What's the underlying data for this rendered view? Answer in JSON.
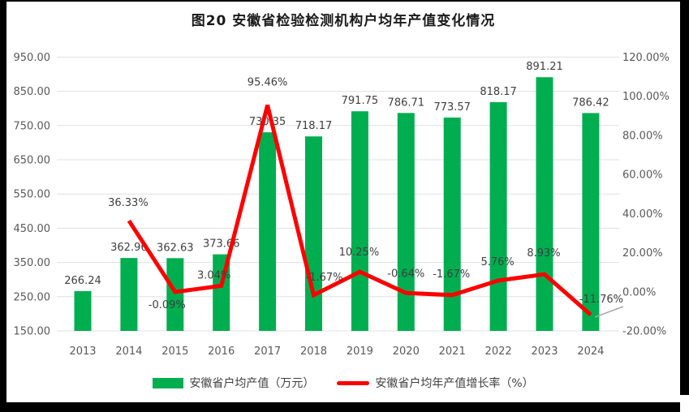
{
  "frame": {
    "title": "图20 安徽省检验检测机构户均年产值变化情况"
  },
  "chart_data": {
    "type": "bar+line combo",
    "title": "图20 安徽省检验检测机构户均年产值变化情况",
    "categories": [
      "2013",
      "2014",
      "2015",
      "2016",
      "2017",
      "2018",
      "2019",
      "2020",
      "2021",
      "2022",
      "2023",
      "2024"
    ],
    "series": [
      {
        "name": "安徽省户均产值（万元）",
        "type": "bar",
        "axis": "left",
        "color": "#00AE50",
        "values": [
          266.24,
          362.96,
          362.63,
          373.66,
          730.35,
          718.17,
          791.75,
          786.71,
          773.57,
          818.17,
          891.21,
          786.42
        ],
        "labels": [
          "266.24",
          "362.96",
          "362.63",
          "373.66",
          "730.35",
          "718.17",
          "791.75",
          "786.71",
          "773.57",
          "818.17",
          "891.21",
          "786.42"
        ]
      },
      {
        "name": "安徽省户均年产值增长率（%）",
        "type": "line",
        "axis": "right",
        "color": "#FF0000",
        "values": [
          null,
          36.33,
          -0.09,
          3.04,
          95.46,
          -1.67,
          10.25,
          -0.64,
          -1.67,
          5.76,
          8.93,
          -11.76
        ],
        "labels": [
          null,
          "36.33%",
          "-0.09%",
          "3.04%",
          "95.46%",
          "-1.67%",
          "10.25%",
          "-0.64%",
          "-1.67%",
          "5.76%",
          "8.93%",
          "-11.76%"
        ]
      }
    ],
    "left_axis": {
      "min": 150,
      "max": 950,
      "step": 100,
      "tick_values": [
        150,
        250,
        350,
        450,
        550,
        650,
        750,
        850,
        950
      ],
      "tick_labels": [
        "150.00",
        "250.00",
        "350.00",
        "450.00",
        "550.00",
        "650.00",
        "750.00",
        "850.00",
        "950.00"
      ]
    },
    "right_axis": {
      "min": -20,
      "max": 120,
      "step": 20,
      "tick_values": [
        -20,
        0,
        20,
        40,
        60,
        80,
        100,
        120
      ],
      "tick_labels": [
        "-20.00%",
        "0.00%",
        "20.00%",
        "40.00%",
        "60.00%",
        "80.00%",
        "100.00%",
        "120.00%"
      ]
    },
    "grid": true,
    "legend_position": "bottom"
  },
  "legend": {
    "bar_label": "安徽省户均产值（万元）",
    "line_label": "安徽省户均年产值增长率（%）"
  },
  "colors": {
    "bar": "#00AE50",
    "line": "#FF0000",
    "grid": "#E0E0E0",
    "axis_text": "#595959",
    "data_label": "#3F3F3F",
    "leader": "#A6A6A6",
    "frame": "#000000",
    "background": "#FFFFFF"
  }
}
